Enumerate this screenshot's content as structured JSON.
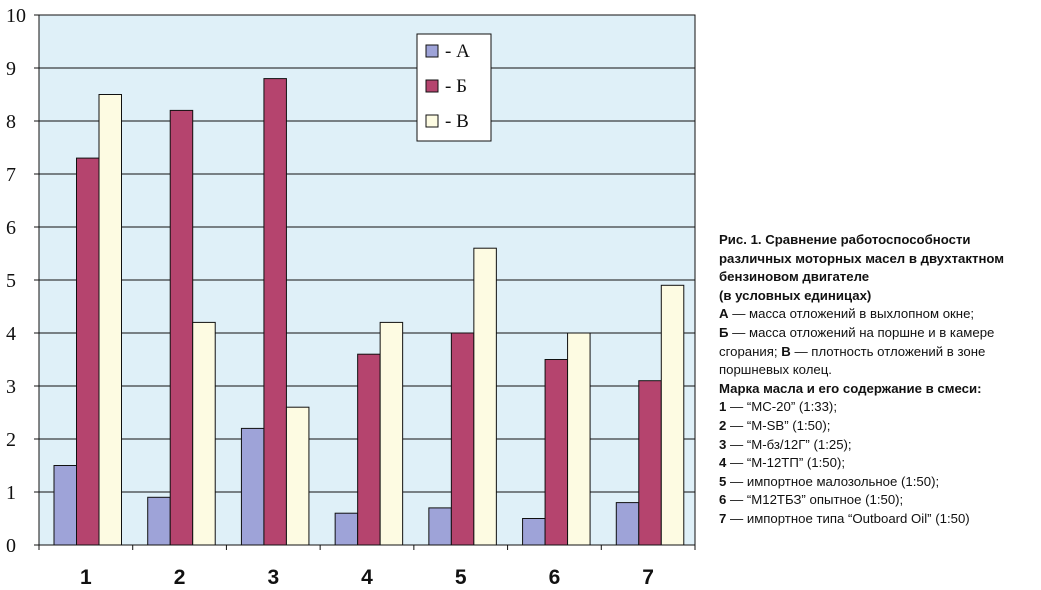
{
  "chart_data": {
    "type": "bar",
    "categories": [
      "1",
      "2",
      "3",
      "4",
      "5",
      "6",
      "7"
    ],
    "series": [
      {
        "name": "- А",
        "color": "#9ea3d8",
        "values": [
          1.5,
          0.9,
          2.2,
          0.6,
          0.7,
          0.5,
          0.8
        ]
      },
      {
        "name": "- Б",
        "color": "#b5446e",
        "values": [
          7.3,
          8.2,
          8.8,
          3.6,
          4.0,
          3.5,
          3.1
        ]
      },
      {
        "name": "- В",
        "color": "#fdfbe2",
        "values": [
          8.5,
          4.2,
          2.6,
          4.2,
          5.6,
          4.0,
          4.9
        ]
      }
    ],
    "yticks": [
      "0",
      "1",
      "2",
      "3",
      "4",
      "5",
      "6",
      "7",
      "8",
      "9",
      "10"
    ],
    "ylim": [
      0,
      10
    ],
    "grid": true,
    "plot_background": "#dff0f8",
    "legend_position": "top-center"
  },
  "caption": {
    "title": "Рис. 1. Сравнение работоспособности различных моторных масел в двухтактном бензиновом двигателе",
    "subtitle": "(в условных единицах)",
    "defs": [
      {
        "key": "А",
        "text": " — масса отложений в выхлопном окне;"
      },
      {
        "key": "Б",
        "text": " — масса отложений на поршне и в камере сгорания; "
      },
      {
        "key": "В",
        "text": " — плотность отложений в зоне поршневых колец."
      }
    ],
    "brand_heading": "Марка масла и его содержание в смеси:",
    "brands": [
      {
        "num": "1",
        "text": " — “МС-20” (1:33);"
      },
      {
        "num": "2",
        "text": " — “M-SB” (1:50);"
      },
      {
        "num": "3",
        "text": " — “М-бз/12Г” (1:25);"
      },
      {
        "num": "4",
        "text": " — “М-12ТП” (1:50);"
      },
      {
        "num": "5",
        "text": " — импортное малозольное (1:50);"
      },
      {
        "num": "6",
        "text": " — “М12ТБЗ” опытное (1:50);"
      },
      {
        "num": "7",
        "text": " — импортное типа “Outboard Oil” (1:50)"
      }
    ]
  }
}
